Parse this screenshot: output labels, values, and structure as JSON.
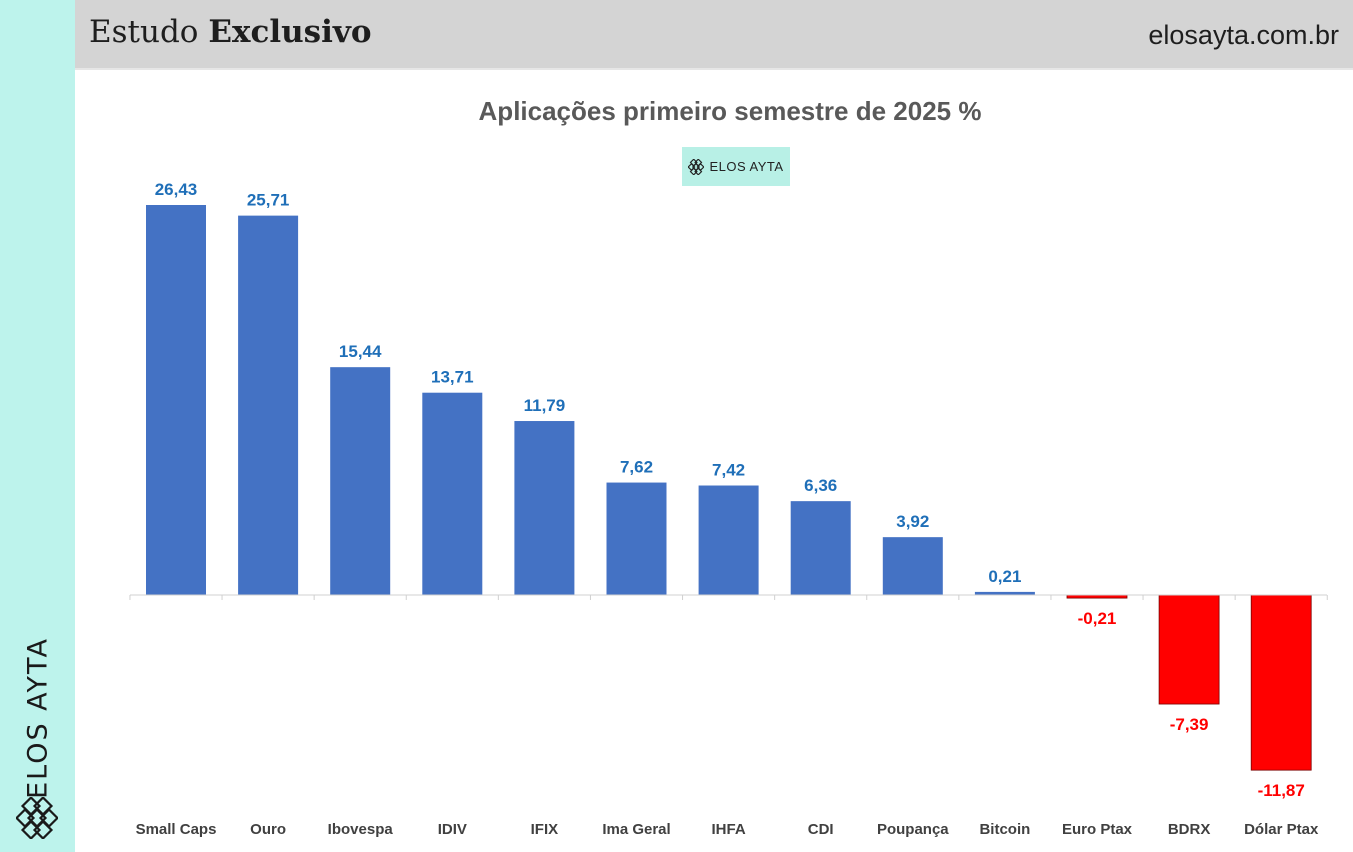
{
  "header": {
    "title_regular": "Estudo",
    "title_bold": "Exclusivo",
    "site": "elosayta.com.br"
  },
  "brand": {
    "name": "ELOS AYTA",
    "badge": "ELOS AYTA"
  },
  "colors": {
    "positive": "#4472c4",
    "negative": "#ff0000",
    "positive_label": "#1f6fb8",
    "negative_label": "#ff0000",
    "sidebar": "#bdf3ec",
    "header": "#d4d4d4"
  },
  "chart_data": {
    "type": "bar",
    "title": "Aplicações primeiro semestre de 2025 %",
    "categories": [
      "Small Caps",
      "Ouro",
      "Ibovespa",
      "IDIV",
      "IFIX",
      "Ima Geral",
      "IHFA",
      "CDI",
      "Poupança",
      "Bitcoin",
      "Euro Ptax",
      "BDRX",
      "Dólar Ptax"
    ],
    "values": [
      26.43,
      25.71,
      15.44,
      13.71,
      11.79,
      7.62,
      7.42,
      6.36,
      3.92,
      0.21,
      -0.21,
      -7.39,
      -11.87
    ],
    "labels": [
      "26,43",
      "25,71",
      "15,44",
      "13,71",
      "11,79",
      "7,62",
      "7,42",
      "6,36",
      "3,92",
      "0,21",
      "-0,21",
      "-7,39",
      "-11,87"
    ],
    "xlabel": "",
    "ylabel": "",
    "grid": false,
    "legend": "none"
  }
}
